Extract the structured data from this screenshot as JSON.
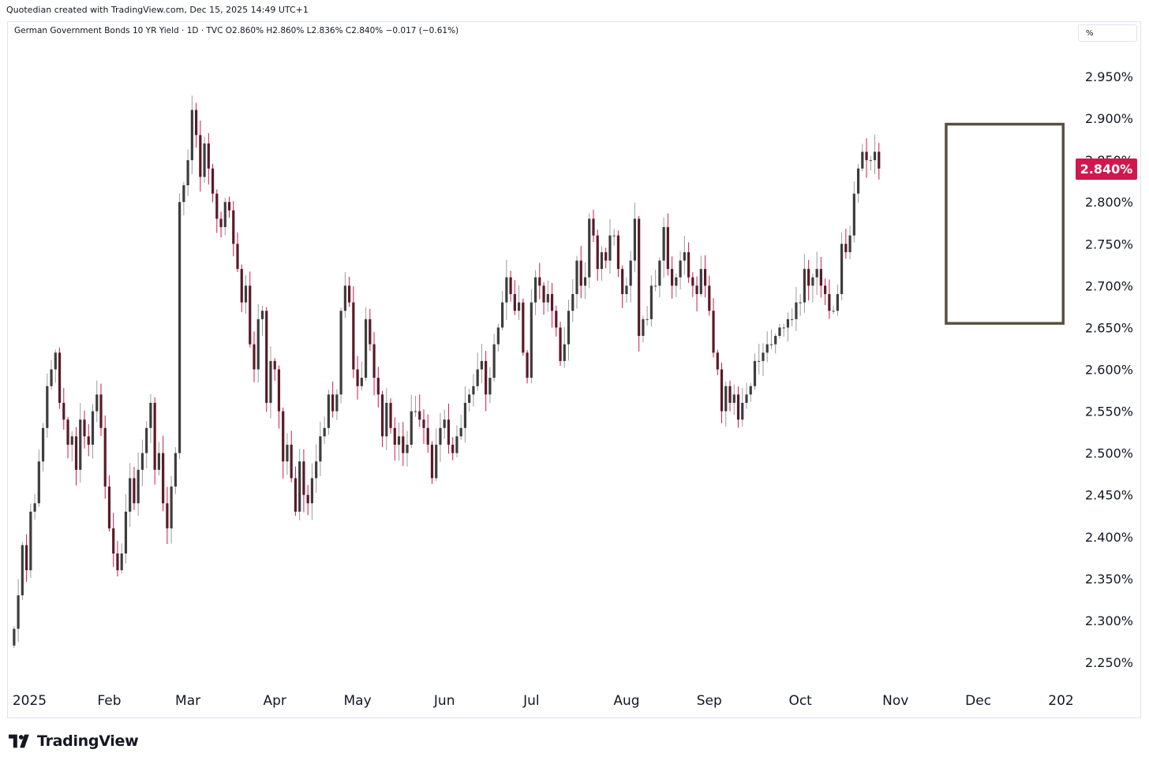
{
  "header": {
    "credit": "Quotedian created with TradingView.com, Dec 15, 2025 14:49 UTC+1"
  },
  "legend": {
    "symbol_line": "German Government Bonds 10 YR Yield · 1D · TVC  O2.860%  H2.860%  L2.836%  C2.840%  −0.017 (−0.61%)"
  },
  "price_scale": {
    "unit_label": "%"
  },
  "last_price": {
    "label": "2.840%",
    "color": "#d1184e"
  },
  "brand": {
    "name": "TradingView"
  },
  "colors": {
    "up": "#3d3d3d",
    "down": "#5a1a28",
    "wick_down": "#d1184e",
    "wick_up": "#9b9b9b",
    "highlight": "#5a5040"
  },
  "chart_data": {
    "type": "candlestick",
    "title": "German Government Bonds 10 YR Yield",
    "ylabel": "",
    "xlabel": "",
    "ylim": [
      2.22,
      2.99
    ],
    "yticks": [
      2.25,
      2.3,
      2.35,
      2.4,
      2.45,
      2.5,
      2.55,
      2.6,
      2.65,
      2.7,
      2.75,
      2.8,
      2.85,
      2.9,
      2.95
    ],
    "ytick_labels": [
      "2.250%",
      "2.300%",
      "2.350%",
      "2.400%",
      "2.450%",
      "2.500%",
      "2.550%",
      "2.600%",
      "2.650%",
      "2.700%",
      "2.750%",
      "2.800%",
      "2.850%",
      "2.900%",
      "2.950%"
    ],
    "x_tick_labels": [
      "2025",
      "Feb",
      "Mar",
      "Apr",
      "May",
      "Jun",
      "Jul",
      "Aug",
      "Sep",
      "Oct",
      "Nov",
      "Dec",
      "202"
    ],
    "x_tick_bars": [
      0,
      23,
      42,
      63,
      83,
      104,
      125,
      148,
      168,
      190,
      213,
      233,
      253
    ],
    "x_range_bars": [
      -1.5,
      255
    ],
    "annotation_box": {
      "from_bar": 226,
      "to_bar": 252,
      "y_low": 2.655,
      "y_high": 2.893
    },
    "closes": [
      2.29,
      2.33,
      2.39,
      2.36,
      2.43,
      2.44,
      2.49,
      2.53,
      2.58,
      2.6,
      2.62,
      2.56,
      2.54,
      2.51,
      2.52,
      2.48,
      2.54,
      2.52,
      2.51,
      2.55,
      2.57,
      2.53,
      2.46,
      2.41,
      2.38,
      2.36,
      2.38,
      2.43,
      2.47,
      2.44,
      2.48,
      2.5,
      2.53,
      2.56,
      2.48,
      2.5,
      2.44,
      2.41,
      2.46,
      2.5,
      2.8,
      2.82,
      2.85,
      2.91,
      2.88,
      2.83,
      2.87,
      2.84,
      2.81,
      2.78,
      2.77,
      2.8,
      2.79,
      2.75,
      2.72,
      2.68,
      2.7,
      2.63,
      2.6,
      2.66,
      2.67,
      2.56,
      2.61,
      2.6,
      2.55,
      2.49,
      2.51,
      2.47,
      2.43,
      2.49,
      2.45,
      2.44,
      2.47,
      2.49,
      2.52,
      2.53,
      2.57,
      2.55,
      2.57,
      2.67,
      2.7,
      2.68,
      2.6,
      2.58,
      2.59,
      2.66,
      2.63,
      2.59,
      2.57,
      2.52,
      2.56,
      2.53,
      2.51,
      2.52,
      2.5,
      2.51,
      2.55,
      2.55,
      2.54,
      2.53,
      2.51,
      2.47,
      2.51,
      2.53,
      2.54,
      2.51,
      2.5,
      2.52,
      2.53,
      2.56,
      2.57,
      2.58,
      2.6,
      2.61,
      2.57,
      2.59,
      2.63,
      2.65,
      2.68,
      2.71,
      2.69,
      2.67,
      2.68,
      2.62,
      2.59,
      2.68,
      2.71,
      2.7,
      2.68,
      2.69,
      2.67,
      2.65,
      2.61,
      2.63,
      2.67,
      2.69,
      2.73,
      2.7,
      2.71,
      2.78,
      2.76,
      2.72,
      2.74,
      2.73,
      2.76,
      2.76,
      2.72,
      2.69,
      2.7,
      2.73,
      2.78,
      2.64,
      2.66,
      2.66,
      2.7,
      2.7,
      2.73,
      2.77,
      2.72,
      2.7,
      2.71,
      2.73,
      2.74,
      2.71,
      2.7,
      2.69,
      2.72,
      2.7,
      2.67,
      2.62,
      2.6,
      2.55,
      2.58,
      2.56,
      2.57,
      2.54,
      2.56,
      2.57,
      2.58,
      2.61,
      2.61,
      2.62,
      2.63,
      2.63,
      2.64,
      2.65,
      2.65,
      2.66,
      2.66,
      2.68,
      2.68,
      2.72,
      2.7,
      2.71,
      2.72,
      2.7,
      2.69,
      2.67,
      2.67,
      2.69,
      2.75,
      2.74,
      2.76,
      2.81,
      2.84,
      2.86,
      2.85,
      2.85,
      2.86,
      2.84
    ]
  }
}
